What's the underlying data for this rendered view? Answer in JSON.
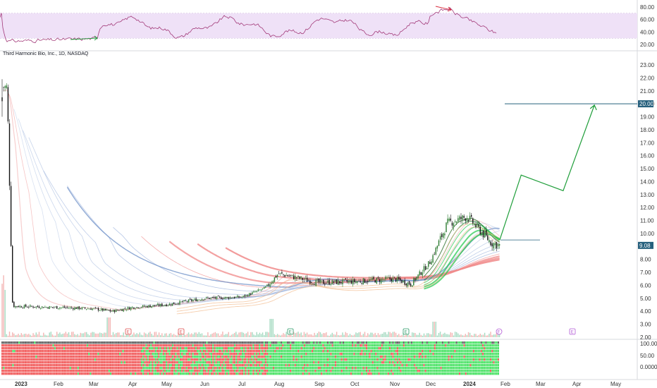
{
  "chart_data": {
    "type": "candlestick",
    "title": "Third Harmonic Bio, Inc., 1D, NASDAQ",
    "x_months": [
      "2023",
      "Feb",
      "Mar",
      "Apr",
      "May",
      "Jun",
      "Jul",
      "Aug",
      "Sep",
      "Oct",
      "Nov",
      "Dec",
      "2024",
      "Feb",
      "Mar",
      "Apr",
      "May"
    ],
    "price_axis": {
      "ticks": [
        "23.00",
        "22.00",
        "21.00",
        "20.00",
        "19.00",
        "18.00",
        "17.00",
        "16.00",
        "15.00",
        "14.00",
        "13.00",
        "12.00",
        "11.00",
        "10.00",
        "9.00",
        "8.00",
        "7.00",
        "6.00",
        "5.00",
        "4.00",
        "3.00",
        "2.00"
      ],
      "ylim": [
        2.0,
        23.0
      ]
    },
    "price_labels": {
      "target": "20.00",
      "last": "9.08"
    },
    "approx_close_path": [
      {
        "month": "2023-01-03",
        "close": 21.3
      },
      {
        "month": "2023-01-06",
        "close": 4.4
      },
      {
        "month": "2023-02-01",
        "close": 4.3
      },
      {
        "month": "2023-03-01",
        "close": 4.2
      },
      {
        "month": "2023-03-15",
        "close": 4.0
      },
      {
        "month": "2023-04-01",
        "close": 4.3
      },
      {
        "month": "2023-05-01",
        "close": 4.5
      },
      {
        "month": "2023-06-01",
        "close": 5.0
      },
      {
        "month": "2023-07-01",
        "close": 5.1
      },
      {
        "month": "2023-07-20",
        "close": 5.8
      },
      {
        "month": "2023-08-01",
        "close": 6.9
      },
      {
        "month": "2023-09-01",
        "close": 6.2
      },
      {
        "month": "2023-10-01",
        "close": 6.3
      },
      {
        "month": "2023-11-01",
        "close": 6.5
      },
      {
        "month": "2023-11-15",
        "close": 6.1
      },
      {
        "month": "2023-12-01",
        "close": 7.8
      },
      {
        "month": "2023-12-15",
        "close": 10.8
      },
      {
        "month": "2024-01-01",
        "close": 11.3
      },
      {
        "month": "2024-01-20",
        "close": 9.3
      },
      {
        "month": "2024-01-27",
        "close": 9.08
      }
    ],
    "projection": [
      {
        "date": "2024-01-27",
        "price": 9.5
      },
      {
        "date": "2024-02-15",
        "price": 14.5
      },
      {
        "date": "2024-03-20",
        "price": 13.3
      },
      {
        "date": "2024-04-15",
        "price": 19.9
      }
    ],
    "rsi": {
      "ticks": [
        "80.00",
        "60.00",
        "40.00",
        "20.00"
      ],
      "ylim": [
        20,
        80
      ],
      "band": [
        30,
        70
      ]
    },
    "bottom_indicator": {
      "ticks": [
        "100.00",
        "50.00",
        "0.0000"
      ]
    },
    "event_markers": [
      {
        "label": "E",
        "month": "2023-03"
      },
      {
        "label": "E",
        "month": "2023-05"
      },
      {
        "label": "E",
        "month": "2023-08"
      },
      {
        "label": "E",
        "month": "2023-11"
      },
      {
        "label": "F",
        "month": "2024-01"
      },
      {
        "label": "E",
        "month": "2024-03"
      }
    ],
    "colors": {
      "up": "#26a69a",
      "down": "#ef5350",
      "rsi_line": "#a33b7a",
      "rsi_band": "#efe1f7",
      "projection": "#1f9e3a",
      "target_line": "#26607d",
      "bull_ribbon": "#1ec84a",
      "bear_ribbon": "#f08a8a"
    }
  }
}
